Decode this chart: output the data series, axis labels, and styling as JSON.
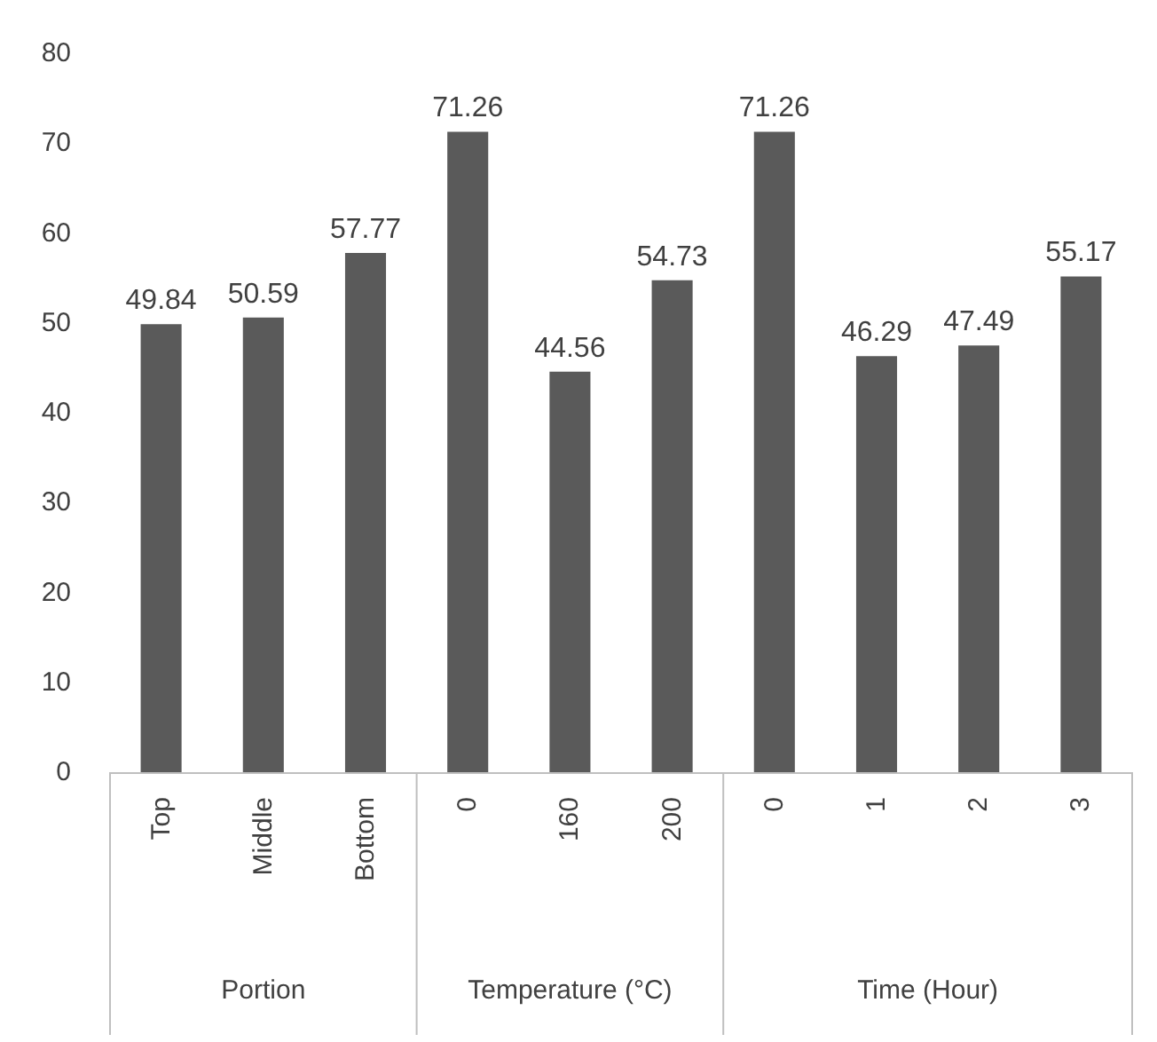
{
  "chart_data": {
    "type": "bar",
    "categories": [
      "Top",
      "Middle",
      "Bottom",
      "0",
      "160",
      "200",
      "0",
      "1",
      "2",
      "3"
    ],
    "values": [
      49.84,
      50.59,
      57.77,
      71.26,
      44.56,
      54.73,
      71.26,
      46.29,
      47.49,
      55.17
    ],
    "color": "#5a5a5a",
    "ylim": [
      0,
      80
    ],
    "yticks": [
      0,
      10,
      20,
      30,
      40,
      50,
      60,
      70,
      80
    ],
    "data_labels": true,
    "annotations": [
      "Portion",
      "Temperature (°C)",
      "Time (Hour)"
    ]
  }
}
